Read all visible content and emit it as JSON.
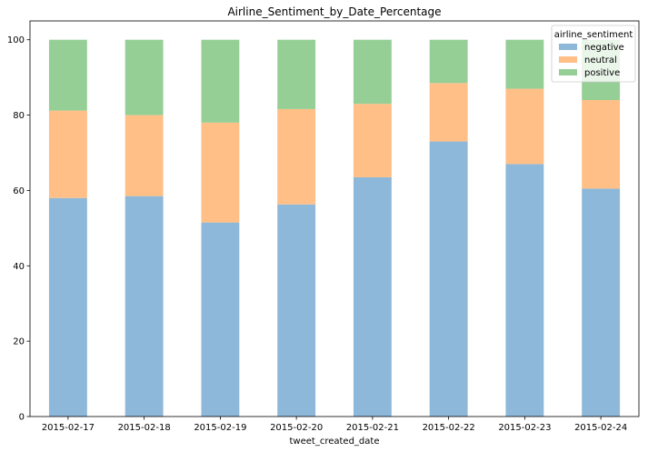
{
  "chart_data": {
    "type": "bar",
    "stacked": true,
    "title": "Airline_Sentiment_by_Date_Percentage",
    "xlabel": "tweet_created_date",
    "ylabel": "",
    "ylim": [
      0,
      105
    ],
    "yticks": [
      0,
      20,
      40,
      60,
      80,
      100
    ],
    "grid": false,
    "legend_title": "airline_sentiment",
    "legend_position": "top-right",
    "categories": [
      "2015-02-17",
      "2015-02-18",
      "2015-02-19",
      "2015-02-20",
      "2015-02-21",
      "2015-02-22",
      "2015-02-23",
      "2015-02-24"
    ],
    "series": [
      {
        "name": "negative",
        "color": "#8db8d9",
        "values": [
          58.0,
          58.5,
          51.5,
          56.3,
          63.5,
          73.0,
          67.0,
          60.5
        ]
      },
      {
        "name": "neutral",
        "color": "#ffbf86",
        "values": [
          23.2,
          21.5,
          26.5,
          25.3,
          19.5,
          15.5,
          20.0,
          23.5
        ]
      },
      {
        "name": "positive",
        "color": "#96cf96",
        "values": [
          18.8,
          20.0,
          22.0,
          18.4,
          17.0,
          11.5,
          13.0,
          16.0
        ]
      }
    ]
  }
}
